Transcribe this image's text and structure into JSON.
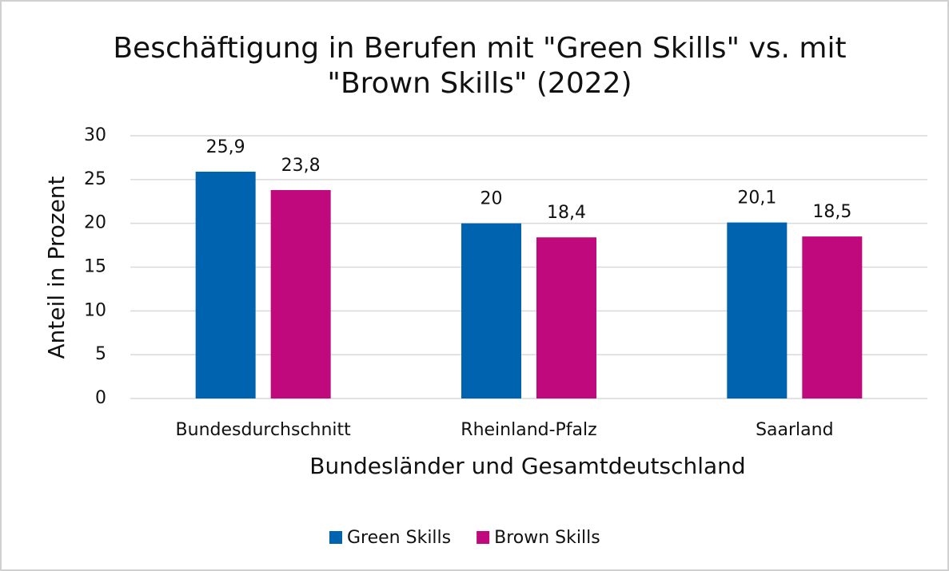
{
  "chart_data": {
    "type": "bar",
    "title": [
      "Beschäftigung in Berufen mit \"Green Skills\" vs. mit",
      "\"Brown Skills\" (2022)"
    ],
    "xlabel": "Bundesländer und Gesamtdeutschland",
    "ylabel": "Anteil in Prozent",
    "categories": [
      "Bundesdurchschnitt",
      "Rheinland-Pfalz",
      "Saarland"
    ],
    "series": [
      {
        "name": "Green Skills",
        "color": "#0063af",
        "values": [
          25.9,
          20,
          20.1
        ],
        "value_labels": [
          "25,9",
          "20",
          "20,1"
        ]
      },
      {
        "name": "Brown Skills",
        "color": "#c0097c",
        "values": [
          23.8,
          18.4,
          18.5
        ],
        "value_labels": [
          "23,8",
          "18,4",
          "18,5"
        ]
      }
    ],
    "ylim": [
      0,
      30
    ],
    "yticks": [
      0,
      5,
      10,
      15,
      20,
      25,
      30
    ],
    "grid": true,
    "legend": "bottom"
  }
}
